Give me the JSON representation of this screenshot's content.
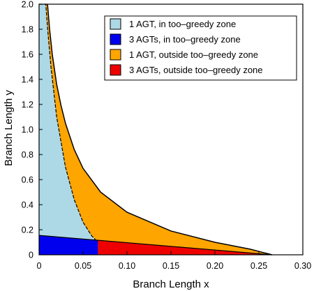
{
  "chart_data": {
    "type": "area",
    "title": "",
    "xlabel": "Branch Length x",
    "ylabel": "Branch Length y",
    "xlim": [
      0,
      0.3
    ],
    "ylim": [
      0,
      2.0
    ],
    "x_ticks": [
      "0",
      "0.05",
      "0.10",
      "0.15",
      "0.20",
      "0.25",
      "0.30"
    ],
    "y_ticks": [
      "0",
      "0.2",
      "0.4",
      "0.6",
      "0.8",
      "1.0",
      "1.2",
      "1.4",
      "1.6",
      "1.8",
      "2.0"
    ],
    "grid": false,
    "legend_position": "top-right",
    "series": [
      {
        "name": "1 AGT, in too–greedy zone",
        "color": "#add8e6",
        "boundary_x": [
          0.0,
          0.0076,
          0.0098,
          0.0135,
          0.02,
          0.03,
          0.04,
          0.05,
          0.06,
          0.067
        ],
        "boundary_y": [
          2.0,
          2.0,
          1.8,
          1.5,
          1.1,
          0.7,
          0.44,
          0.26,
          0.15,
          0.1
        ]
      },
      {
        "name": "3 AGTs, in too–greedy zone",
        "color": "#0000ee"
      },
      {
        "name": "1 AGT, outside too–greedy zone",
        "color": "#ffa500",
        "boundary_x": [
          0.0096,
          0.012,
          0.015,
          0.02,
          0.025,
          0.03,
          0.04,
          0.05,
          0.07,
          0.1,
          0.15,
          0.2,
          0.24,
          0.265
        ],
        "boundary_y": [
          2.0,
          1.8,
          1.6,
          1.36,
          1.19,
          1.05,
          0.84,
          0.69,
          0.5,
          0.34,
          0.19,
          0.1,
          0.045,
          0.0
        ]
      },
      {
        "name": "3 AGTs, outside too–greedy zone",
        "color": "#ee0000"
      }
    ],
    "three_agt_boundary": {
      "x": [
        0.0,
        0.265
      ],
      "y": [
        0.155,
        0.0
      ]
    }
  }
}
